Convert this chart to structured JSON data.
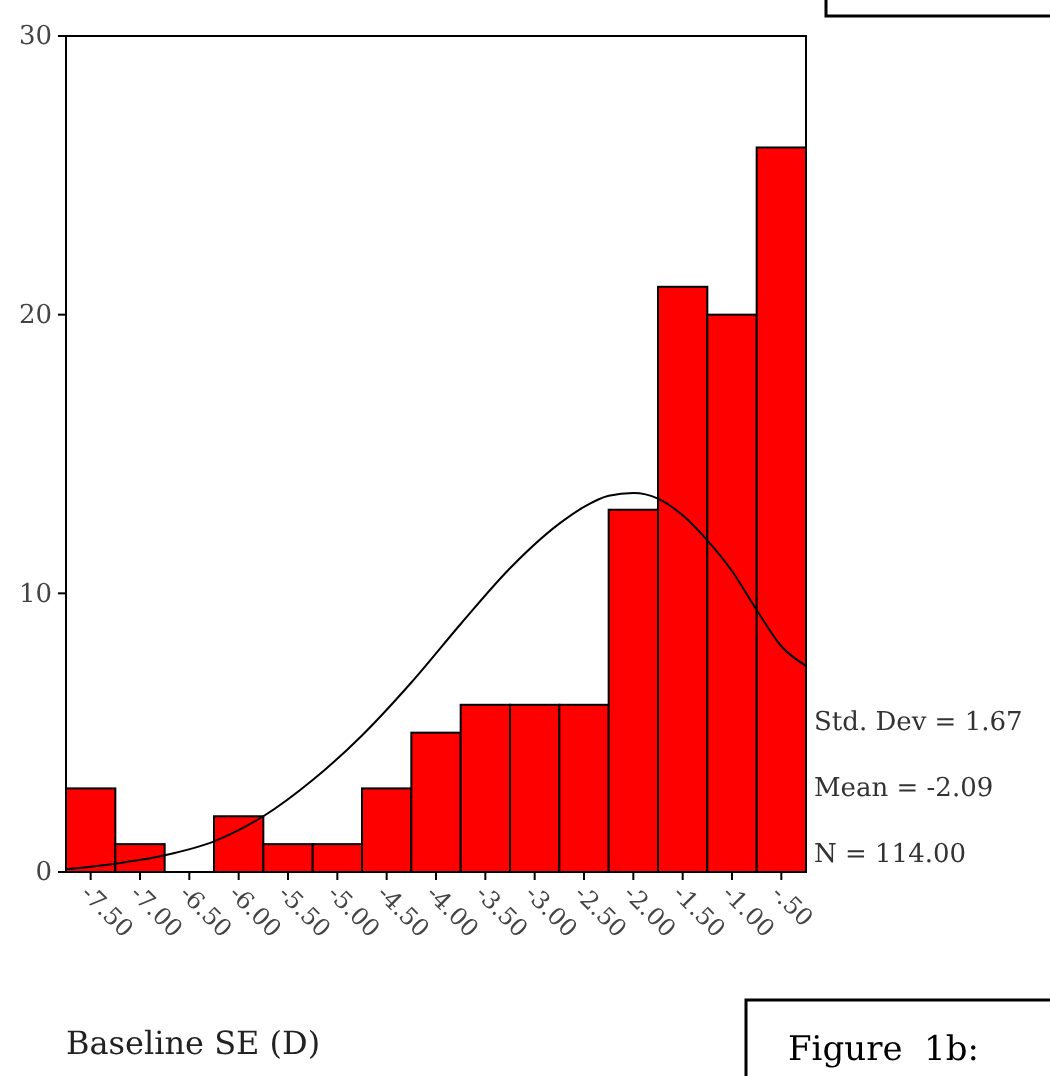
{
  "chart_data": {
    "type": "histogram",
    "xlabel": "Baseline SE (D)",
    "bins": [
      -7.75,
      -7.25,
      -6.75,
      -6.25,
      -5.75,
      -5.25,
      -4.75,
      -4.25,
      -3.75,
      -3.25,
      -2.75,
      -2.25,
      -1.75,
      -1.25,
      -0.75,
      -0.25
    ],
    "values": [
      3,
      1,
      0,
      2,
      1,
      1,
      3,
      5,
      6,
      6,
      6,
      13,
      21,
      20,
      26
    ],
    "color": "#ff0000",
    "xlim": [
      -7.75,
      -0.25
    ],
    "xticks": [
      {
        "value": -7.5,
        "label": "-7.50"
      },
      {
        "value": -7,
        "label": "-7.00"
      },
      {
        "value": -6.5,
        "label": "-6.50"
      },
      {
        "value": -6,
        "label": "-6.00"
      },
      {
        "value": -5.5,
        "label": "-5.50"
      },
      {
        "value": -5,
        "label": "-5.00"
      },
      {
        "value": -4.5,
        "label": "-4.50"
      },
      {
        "value": -4,
        "label": "-4.00"
      },
      {
        "value": -3.5,
        "label": "-3.50"
      },
      {
        "value": -3,
        "label": "-3.00"
      },
      {
        "value": -2.5,
        "label": "-2.50"
      },
      {
        "value": -2,
        "label": "-2.00"
      },
      {
        "value": -1.5,
        "label": "-1.50"
      },
      {
        "value": -1,
        "label": "-1.00"
      },
      {
        "value": -0.5,
        "label": "-.50"
      }
    ],
    "ylim": [
      0,
      30
    ],
    "yticks": [
      0,
      10,
      20,
      30
    ],
    "series": [
      {
        "type": "line",
        "color": "#000000",
        "x": [
          -7.75,
          -7.25,
          -6.75,
          -6.25,
          -5.75,
          -5.25,
          -4.75,
          -4.25,
          -3.75,
          -3.25,
          -2.75,
          -2.5,
          -2.25,
          -2.0,
          -1.75,
          -1.5,
          -1.25,
          -1.0,
          -0.75,
          -0.5,
          -0.25
        ],
        "values": [
          0.1,
          0.3,
          0.6,
          1.1,
          2.0,
          3.3,
          4.9,
          6.8,
          8.9,
          10.9,
          12.5,
          13.1,
          13.5,
          13.6,
          13.4,
          12.8,
          11.9,
          10.8,
          9.4,
          8.1,
          7.4
        ]
      }
    ],
    "annotations": [
      "Std. Dev = 1.67",
      "Mean = -2.09",
      "N = 114.00",
      "Figure  1b:"
    ]
  }
}
